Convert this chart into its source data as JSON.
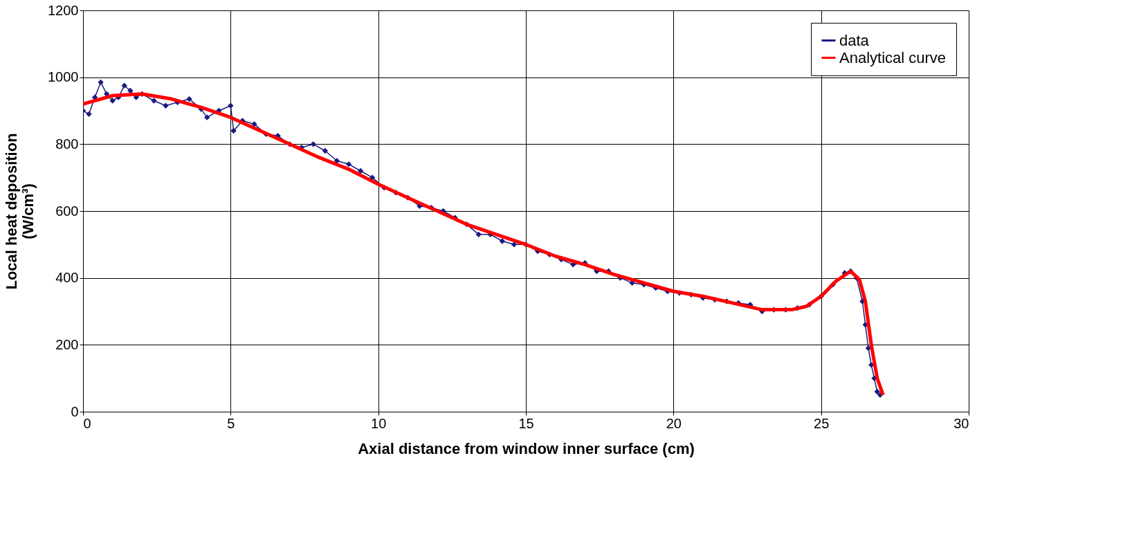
{
  "chart_data": {
    "type": "line",
    "xlabel": "Axial distance from window inner surface (cm)",
    "ylabel": "Local heat deposition\n(W/cm³)",
    "xlim": [
      0,
      30
    ],
    "xticks": [
      0,
      5,
      10,
      15,
      20,
      25,
      30
    ],
    "ylim": [
      0,
      1200
    ],
    "yticks": [
      0,
      200,
      400,
      600,
      800,
      1000,
      1200
    ],
    "grid": true,
    "legend": "top right",
    "series": [
      {
        "name": "data",
        "color": "#1a1a80",
        "marker": "diamond",
        "line_style": "solid",
        "x": [
          0,
          0.2,
          0.4,
          0.6,
          0.8,
          1.0,
          1.2,
          1.4,
          1.6,
          1.8,
          2.0,
          2.4,
          2.8,
          3.2,
          3.6,
          4.0,
          4.2,
          4.6,
          5.0,
          5.1,
          5.4,
          5.8,
          6.2,
          6.6,
          7.0,
          7.4,
          7.8,
          8.2,
          8.6,
          9.0,
          9.4,
          9.8,
          10.2,
          10.6,
          11.0,
          11.4,
          11.8,
          12.2,
          12.6,
          13.0,
          13.4,
          13.8,
          14.2,
          14.6,
          15.0,
          15.4,
          15.8,
          16.2,
          16.6,
          17.0,
          17.4,
          17.8,
          18.2,
          18.6,
          19.0,
          19.4,
          19.8,
          20.2,
          20.6,
          21.0,
          21.4,
          21.8,
          22.2,
          22.6,
          23.0,
          23.4,
          23.8,
          24.2,
          24.6,
          25.0,
          25.4,
          25.8,
          26.0,
          26.2,
          26.4,
          26.5,
          26.6,
          26.7,
          26.8,
          26.9,
          27.0
        ],
        "values": [
          900,
          890,
          940,
          985,
          950,
          930,
          940,
          975,
          960,
          940,
          950,
          930,
          915,
          925,
          935,
          905,
          880,
          900,
          915,
          840,
          870,
          860,
          830,
          825,
          800,
          790,
          800,
          780,
          750,
          740,
          720,
          700,
          670,
          655,
          640,
          615,
          610,
          600,
          580,
          560,
          530,
          530,
          510,
          500,
          500,
          480,
          470,
          455,
          440,
          445,
          420,
          420,
          400,
          385,
          380,
          370,
          360,
          355,
          350,
          340,
          335,
          330,
          325,
          320,
          300,
          305,
          305,
          310,
          320,
          345,
          380,
          415,
          420,
          400,
          330,
          260,
          190,
          140,
          100,
          60,
          50
        ]
      },
      {
        "name": "Analytical curve",
        "color": "#ff0000",
        "marker": "none",
        "line_style": "solid",
        "x": [
          0,
          1,
          2,
          3,
          4,
          5,
          6,
          7,
          8,
          9,
          10,
          11,
          12,
          13,
          14,
          15,
          16,
          17,
          18,
          19,
          20,
          21,
          22,
          23,
          24,
          24.5,
          25,
          25.5,
          26,
          26.3,
          26.5,
          26.7,
          26.9,
          27.1
        ],
        "values": [
          920,
          945,
          950,
          935,
          910,
          880,
          840,
          800,
          760,
          725,
          680,
          640,
          600,
          560,
          530,
          500,
          465,
          440,
          410,
          385,
          360,
          345,
          325,
          305,
          305,
          315,
          345,
          390,
          420,
          395,
          330,
          200,
          100,
          50
        ]
      }
    ]
  }
}
